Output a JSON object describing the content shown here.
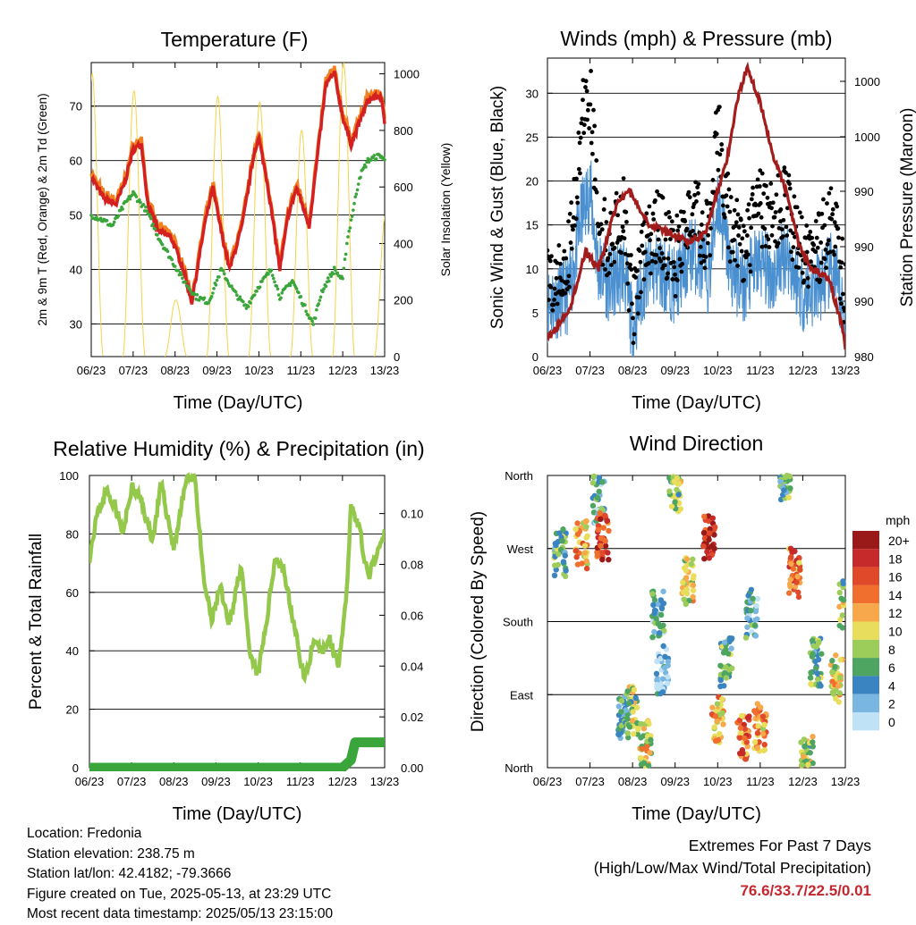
{
  "chart_data": [
    {
      "id": "temperature",
      "type": "line",
      "title": "Temperature (F)",
      "xlabel": "Time (Day/UTC)",
      "ylabel_left": "2m & 9m T (Red, Orange) & 2m Td (Green)",
      "ylabel_right": "Solar Insolation (Yellow)",
      "x_ticks": [
        "06/23",
        "07/23",
        "08/23",
        "09/23",
        "10/23",
        "11/23",
        "12/23",
        "13/23"
      ],
      "ylim_left": [
        24,
        78
      ],
      "y_ticks_left": [
        30,
        40,
        50,
        60,
        70
      ],
      "ylim_right": [
        0,
        1040
      ],
      "y_ticks_right": [
        0,
        200,
        400,
        600,
        800,
        1000
      ],
      "grid": true,
      "colors": {
        "t2m": "#d42020",
        "t9m": "#f08020",
        "td": "#3aa53a",
        "solar": "#f5d24a"
      },
      "series": [
        {
          "name": "2m T",
          "x": [
            0,
            0.3,
            0.6,
            0.8,
            1.0,
            1.2,
            1.35,
            1.6,
            1.9,
            2.2,
            2.4,
            2.7,
            2.9,
            3.1,
            3.3,
            3.6,
            3.9,
            4.0,
            4.2,
            4.5,
            4.7,
            4.9,
            5.2,
            5.6,
            5.8,
            6.0,
            6.2,
            6.6,
            6.9,
            7.0
          ],
          "values": [
            57,
            53,
            52,
            56,
            62,
            63,
            52,
            47,
            46,
            40,
            34,
            48,
            55,
            47,
            40,
            48,
            62,
            64,
            56,
            40,
            50,
            55,
            48,
            74,
            76,
            68,
            63,
            71,
            72,
            67
          ]
        },
        {
          "name": "2m Td",
          "x": [
            0,
            0.3,
            0.5,
            0.8,
            1.0,
            1.3,
            1.6,
            1.9,
            2.2,
            2.5,
            2.8,
            3.1,
            3.4,
            3.7,
            4.0,
            4.3,
            4.5,
            4.8,
            5.1,
            5.3,
            5.5,
            5.8,
            6.0,
            6.1,
            6.4,
            6.6,
            6.9,
            7.0
          ],
          "values": [
            50,
            49,
            48,
            52,
            54,
            51,
            46,
            42,
            38,
            35,
            34,
            40,
            36,
            33,
            37,
            40,
            35,
            38,
            33,
            30,
            36,
            40,
            38,
            45,
            57,
            60,
            61,
            60
          ]
        },
        {
          "name": "Solar Insolation",
          "unit": "W/m2",
          "peaks": [
            1000,
            940,
            200,
            920,
            900,
            800,
            1040,
            500
          ]
        }
      ]
    },
    {
      "id": "winds",
      "type": "scatter",
      "title": "Winds (mph) & Pressure (mb)",
      "xlabel": "Time (Day/UTC)",
      "ylabel_left": "Sonic Wind & Gust (Blue, Black)",
      "ylabel_right": "Station Pressure (Maroon)",
      "x_ticks": [
        "06/23",
        "07/23",
        "08/23",
        "09/23",
        "10/23",
        "11/23",
        "12/23",
        "13/23"
      ],
      "ylim_left": [
        0,
        34
      ],
      "y_ticks_left": [
        0,
        5,
        10,
        15,
        20,
        25,
        30
      ],
      "right_tick_labels": [
        "980",
        "990",
        "990",
        "990",
        "1000",
        "1000"
      ],
      "grid": true,
      "colors": {
        "wind": "#4a90d0",
        "gust": "#000000",
        "pressure": "#a31c1c"
      },
      "series": [
        {
          "name": "Sonic Wind",
          "x": [
            0,
            0.5,
            0.8,
            1.0,
            1.2,
            1.5,
            1.8,
            2.0,
            2.3,
            2.6,
            3.0,
            3.4,
            3.8,
            4.0,
            4.3,
            4.6,
            5.0,
            5.3,
            5.6,
            6.0,
            6.4,
            6.7,
            7.0
          ],
          "values": [
            6,
            7,
            16,
            19,
            10,
            8,
            10,
            3,
            9,
            10,
            8,
            12,
            9,
            18,
            10,
            8,
            11,
            9,
            12,
            7,
            8,
            10,
            4
          ]
        },
        {
          "name": "Gust",
          "x": [
            0,
            0.5,
            0.8,
            1.0,
            1.2,
            1.5,
            1.8,
            2.0,
            2.3,
            2.6,
            3.0,
            3.4,
            3.8,
            4.0,
            4.3,
            4.6,
            5.0,
            5.3,
            5.6,
            6.0,
            6.4,
            6.7,
            7.0
          ],
          "values": [
            9,
            11,
            26,
            31,
            15,
            13,
            16,
            5,
            13,
            15,
            11,
            17,
            13,
            26,
            15,
            12,
            17,
            15,
            18,
            11,
            13,
            16,
            7
          ]
        },
        {
          "name": "Station Pressure",
          "x": [
            0,
            0.5,
            0.9,
            1.2,
            1.6,
            1.9,
            2.4,
            2.9,
            3.3,
            3.7,
            4.2,
            4.5,
            4.7,
            5.0,
            5.3,
            5.6,
            5.9,
            6.2,
            6.6,
            6.9,
            7.0
          ],
          "values": [
            2,
            5,
            12,
            10,
            17,
            19,
            15,
            14,
            13,
            14,
            22,
            30,
            33,
            29,
            23,
            19,
            13,
            10,
            9,
            4,
            1
          ]
        }
      ]
    },
    {
      "id": "humidity",
      "type": "line",
      "title": "Relative Humidity (%) & Precipitation (in)",
      "xlabel": "Time (Day/UTC)",
      "ylabel_left": "Percent & Total Rainfall",
      "x_ticks": [
        "06/23",
        "07/23",
        "08/23",
        "09/23",
        "10/23",
        "11/23",
        "12/23",
        "13/23"
      ],
      "ylim_left": [
        0,
        100
      ],
      "y_ticks_left": [
        0,
        20,
        40,
        60,
        80,
        100
      ],
      "ylim_right": [
        0,
        0.115
      ],
      "y_ticks_right": [
        "0.00",
        "0.02",
        "0.04",
        "0.06",
        "0.08",
        "0.10"
      ],
      "grid": true,
      "colors": {
        "rh": "#93c84b",
        "precip": "#3aa53a"
      },
      "series": [
        {
          "name": "Relative Humidity",
          "x": [
            0,
            0.15,
            0.4,
            0.6,
            0.8,
            1.0,
            1.2,
            1.5,
            1.7,
            2.0,
            2.3,
            2.5,
            2.7,
            2.9,
            3.1,
            3.3,
            3.6,
            3.8,
            4.0,
            4.2,
            4.4,
            4.6,
            4.9,
            5.1,
            5.3,
            5.5,
            5.7,
            5.9,
            6.1,
            6.2,
            6.4,
            6.6,
            6.8,
            7.0
          ],
          "values": [
            72,
            85,
            95,
            90,
            80,
            96,
            92,
            78,
            97,
            75,
            99,
            100,
            65,
            50,
            62,
            48,
            70,
            38,
            32,
            50,
            72,
            68,
            45,
            30,
            42,
            40,
            44,
            35,
            60,
            90,
            82,
            65,
            72,
            80
          ]
        },
        {
          "name": "Total Precipitation",
          "x": [
            0,
            6.0,
            6.2,
            6.3,
            7.0
          ],
          "values": [
            0,
            0,
            0.003,
            0.01,
            0.01
          ]
        }
      ]
    },
    {
      "id": "direction",
      "type": "scatter",
      "title": "Wind Direction",
      "xlabel": "Time (Day/UTC)",
      "ylabel_left": "Direction (Colored By Speed)",
      "x_ticks": [
        "06/23",
        "07/23",
        "08/23",
        "09/23",
        "10/23",
        "11/23",
        "12/23",
        "13/23"
      ],
      "y_ticks_left": [
        "North",
        "East",
        "South",
        "West",
        "North"
      ],
      "ylim_degrees": [
        0,
        360
      ],
      "grid": true,
      "legend": {
        "title": "mph",
        "labels": [
          "20+",
          "18",
          "16",
          "14",
          "12",
          "10",
          "8",
          "6",
          "4",
          "2",
          "0"
        ],
        "colors": [
          "#9a1a1a",
          "#c62a2a",
          "#e04a2a",
          "#f06f2e",
          "#f7a84a",
          "#e8de5c",
          "#9ccc5a",
          "#4ea561",
          "#3a84c1",
          "#79b6e0",
          "#bfe2f6"
        ]
      },
      "series": [
        {
          "name": "Direction clusters",
          "x": [
            0.3,
            0.8,
            1.2,
            1.3,
            1.8,
            2.0,
            2.3,
            2.6,
            2.7,
            3.0,
            3.3,
            3.8,
            4.0,
            4.2,
            4.6,
            4.8,
            5.0,
            5.6,
            5.8,
            6.1,
            6.3,
            6.8,
            7.0
          ],
          "values": [
            265,
            275,
            330,
            285,
            60,
            70,
            30,
            190,
            120,
            345,
            230,
            280,
            60,
            130,
            40,
            190,
            50,
            360,
            240,
            10,
            130,
            110,
            200
          ],
          "speeds": [
            6,
            12,
            4,
            16,
            4,
            8,
            10,
            4,
            2,
            8,
            10,
            18,
            12,
            6,
            14,
            4,
            12,
            6,
            14,
            8,
            6,
            10,
            8
          ]
        }
      ]
    }
  ],
  "footer": {
    "location": "Location: Fredonia",
    "elevation": "Station elevation: 238.75 m",
    "latlon": "Station lat/lon: 42.4182; -79.3666",
    "created": "Figure created on Tue, 2025-05-13, at 23:29 UTC",
    "recent": "Most recent data timestamp: 2025/05/13 23:15:00"
  },
  "extremes": {
    "title": "Extremes For Past 7 Days",
    "subtitle": "(High/Low/Max Wind/Total Precipitation)",
    "values": "76.6/33.7/22.5/0.01"
  }
}
